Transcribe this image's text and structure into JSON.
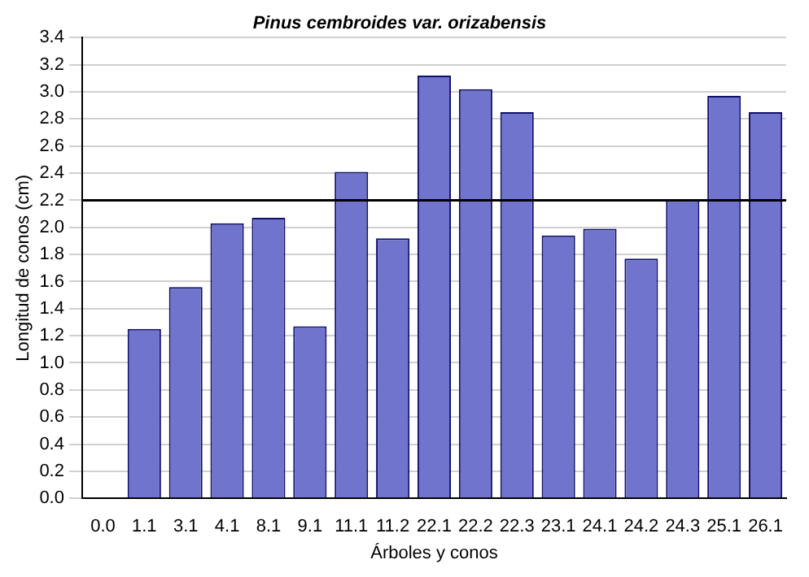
{
  "chart_data": {
    "type": "bar",
    "title": "Pinus cembroides var. orizabensis",
    "xlabel": "Árboles y conos",
    "ylabel": "Longitud de conos (cm)",
    "categories": [
      "0.0",
      "1.1",
      "3.1",
      "4.1",
      "8.1",
      "9.1",
      "11.1",
      "11.2",
      "22.1",
      "22.2",
      "22.3",
      "23.1",
      "24.1",
      "24.2",
      "24.3",
      "25.1",
      "26.1"
    ],
    "values": [
      null,
      1.25,
      1.56,
      2.03,
      2.07,
      1.27,
      2.41,
      1.92,
      3.12,
      3.02,
      2.85,
      1.94,
      1.99,
      1.77,
      2.2,
      2.97,
      2.85
    ],
    "color": "#7074cc",
    "ylim": [
      0,
      3.4
    ],
    "yticks": [
      {
        "value": 0,
        "label": "0.0"
      },
      0.2,
      0.4,
      0.6,
      0.8,
      {
        "value": 1,
        "label": "1.0"
      },
      1.2,
      1.4,
      1.6,
      1.8,
      {
        "value": 2,
        "label": "2.0"
      },
      2.2,
      2.4,
      2.6,
      2.8,
      {
        "value": 3,
        "label": "3.0"
      },
      3.2,
      3.4
    ],
    "grid": "y",
    "legend": false,
    "ref_lines": [
      {
        "axis": "y",
        "value": 2.2,
        "color": "#000000"
      }
    ]
  }
}
